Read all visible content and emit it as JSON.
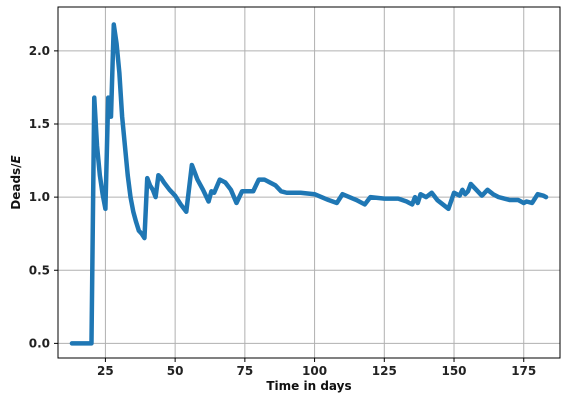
{
  "chart_data": {
    "type": "line",
    "title": "",
    "xlabel": "Time in days",
    "ylabel": "Deads/",
    "ylabel_italic": "E",
    "xlim": [
      8,
      188
    ],
    "ylim": [
      -0.1,
      2.3
    ],
    "xticks": [
      25,
      50,
      75,
      100,
      125,
      150,
      175
    ],
    "yticks": [
      0.0,
      0.5,
      1.0,
      1.5,
      2.0
    ],
    "xtick_labels": [
      "25",
      "50",
      "75",
      "100",
      "125",
      "150",
      "175"
    ],
    "ytick_labels": [
      "0.0",
      "0.5",
      "1.0",
      "1.5",
      "2.0"
    ],
    "grid": true,
    "legend": "none",
    "series": [
      {
        "color": "#1f77b4",
        "x": [
          13,
          20,
          21,
          22,
          23,
          24,
          25,
          26,
          27,
          28,
          29,
          30,
          31,
          32,
          33,
          34,
          35,
          36,
          37,
          38,
          39,
          40,
          41,
          42,
          43,
          44,
          45,
          46,
          48,
          50,
          52,
          54,
          56,
          58,
          60,
          62,
          63,
          64,
          66,
          68,
          70,
          72,
          74,
          76,
          78,
          80,
          82,
          84,
          86,
          88,
          90,
          95,
          100,
          105,
          108,
          110,
          115,
          118,
          120,
          125,
          130,
          133,
          134,
          135,
          136,
          137,
          138,
          140,
          142,
          144,
          146,
          148,
          150,
          152,
          153,
          154,
          155,
          156,
          158,
          160,
          162,
          164,
          166,
          168,
          170,
          173,
          175,
          176,
          178,
          180,
          182,
          183
        ],
        "y": [
          0.0,
          0.0,
          1.68,
          1.35,
          1.15,
          1.02,
          0.92,
          1.68,
          1.55,
          2.18,
          2.05,
          1.85,
          1.55,
          1.35,
          1.15,
          1.0,
          0.9,
          0.83,
          0.77,
          0.75,
          0.72,
          1.13,
          1.08,
          1.05,
          1.0,
          1.15,
          1.13,
          1.1,
          1.05,
          1.01,
          0.95,
          0.9,
          1.22,
          1.12,
          1.05,
          0.97,
          1.04,
          1.03,
          1.12,
          1.1,
          1.05,
          0.96,
          1.04,
          1.04,
          1.04,
          1.12,
          1.12,
          1.1,
          1.08,
          1.04,
          1.03,
          1.03,
          1.02,
          0.98,
          0.96,
          1.02,
          0.98,
          0.95,
          1.0,
          0.99,
          0.99,
          0.97,
          0.96,
          0.95,
          1.0,
          0.96,
          1.02,
          1.0,
          1.03,
          0.98,
          0.95,
          0.92,
          1.03,
          1.01,
          1.05,
          1.02,
          1.04,
          1.09,
          1.05,
          1.01,
          1.05,
          1.02,
          1.0,
          0.99,
          0.98,
          0.98,
          0.96,
          0.97,
          0.96,
          1.02,
          1.01,
          1.0
        ]
      }
    ]
  }
}
